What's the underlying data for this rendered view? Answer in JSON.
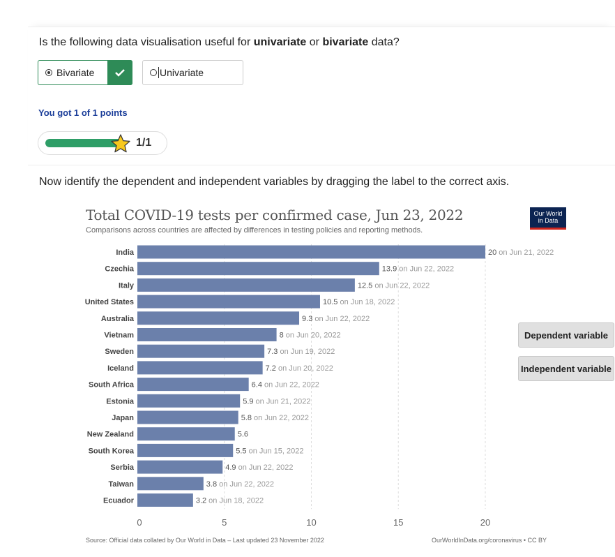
{
  "quiz": {
    "question_prefix": "Is the following data visualisation useful for ",
    "question_term1": "univariate",
    "question_mid": " or ",
    "question_term2": "bivariate",
    "question_suffix": " data?",
    "options": [
      {
        "label": "Bivariate",
        "selected": true,
        "correct": true
      },
      {
        "label": "Univariate",
        "selected": false
      }
    ],
    "score_text": "You got 1 of 1 points",
    "progress_fraction": 1.0,
    "points_label": "1/1",
    "instruction": "Now identify the dependent and independent variables by dragging the label to the correct axis.",
    "drag_labels": [
      "Dependent variable",
      "Independent variable"
    ]
  },
  "chart_data": {
    "type": "bar",
    "title": "Total COVID-19 tests per confirmed case, Jun 23, 2022",
    "subtitle": "Comparisons across countries are affected by differences in testing policies and reporting methods.",
    "logo_text": [
      "Our World",
      "in Data"
    ],
    "source": "Source: Official data collated by Our World in Data – Last updated 23 November 2022",
    "link": "OurWorldInData.org/coronavirus • CC BY",
    "bar_color": "#6b80ab",
    "xlim": [
      0,
      20
    ],
    "xticks": [
      0,
      5,
      10,
      15,
      20
    ],
    "categories": [
      "India",
      "Czechia",
      "Italy",
      "United States",
      "Australia",
      "Vietnam",
      "Sweden",
      "Iceland",
      "South Africa",
      "Estonia",
      "Japan",
      "New Zealand",
      "South Korea",
      "Serbia",
      "Taiwan",
      "Ecuador"
    ],
    "values": [
      20,
      13.9,
      12.5,
      10.5,
      9.3,
      8,
      7.3,
      7.2,
      6.4,
      5.9,
      5.8,
      5.6,
      5.5,
      4.9,
      3.8,
      3.2
    ],
    "dates": [
      "on Jun 21, 2022",
      "on Jun 22, 2022",
      "on Jun 22, 2022",
      "on Jun 18, 2022",
      "on Jun 22, 2022",
      "on Jun 20, 2022",
      "on Jun 19, 2022",
      "on Jun 20, 2022",
      "on Jun 22, 2022",
      "on Jun 21, 2022",
      "on Jun 22, 2022",
      "",
      "on Jun 15, 2022",
      "on Jun 22, 2022",
      "on Jun 22, 2022",
      "on Jun 18, 2022"
    ]
  }
}
